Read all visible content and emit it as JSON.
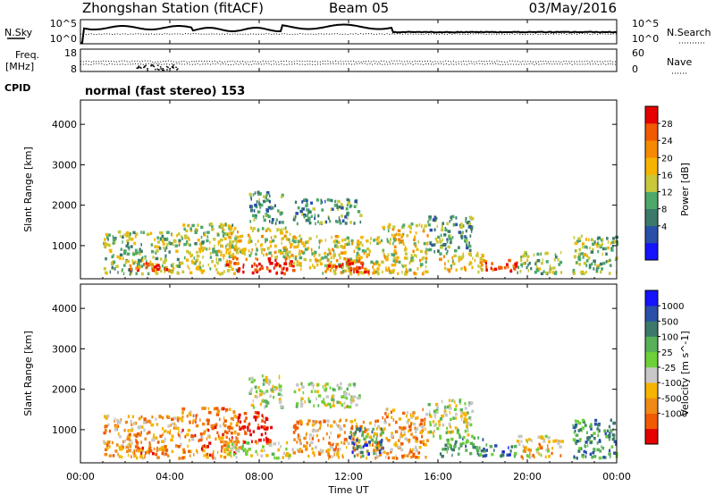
{
  "header": {
    "station": "Zhongshan Station (fitACF)",
    "beam": "Beam 05",
    "date": "03/May/2016"
  },
  "noise_panel": {
    "left_label": "N.Sky",
    "right_label": "N.Search",
    "ticks": [
      "10^5",
      "10^0"
    ]
  },
  "freq_panel": {
    "left_label_1": "Freq.",
    "left_label_2": "[MHz]",
    "right_label": "Nave",
    "left_ticks": [
      "18",
      "8"
    ],
    "right_ticks": [
      "60",
      "0"
    ]
  },
  "cpid": {
    "label": "CPID",
    "text": "normal (fast stereo) 153"
  },
  "colors": {
    "power_scale": [
      "#1414ff",
      "#2a4fa8",
      "#3b7a6a",
      "#4ea86a",
      "#c8c83a",
      "#f5b400",
      "#f58a00",
      "#f05a00",
      "#e60000"
    ],
    "velocity_scale": [
      "#1414ff",
      "#2a4fa8",
      "#3b7a6a",
      "#58b058",
      "#6ed038",
      "#c8c8c8",
      "#f5b400",
      "#f08a14",
      "#f05a00",
      "#e60000"
    ]
  },
  "chart_data": [
    {
      "type": "heatmap",
      "title": "Power",
      "xlabel": "Time UT",
      "ylabel": "Slant Range [km]",
      "x_ticks": [
        "00:00",
        "04:00",
        "08:00",
        "12:00",
        "16:00",
        "20:00",
        "00:00"
      ],
      "xlim_hours": [
        0,
        24
      ],
      "y_ticks": [
        "1000",
        "2000",
        "3000",
        "4000"
      ],
      "ylim": [
        180,
        4600
      ],
      "colorbar": {
        "label": "Power [dB]",
        "ticks": [
          "4",
          "8",
          "12",
          "16",
          "20",
          "24",
          "28"
        ],
        "range": [
          0,
          30
        ]
      },
      "echo_regions": [
        {
          "t": [
            1.0,
            4.5
          ],
          "r": [
            250,
            1300
          ],
          "level": 0.45
        },
        {
          "t": [
            2.0,
            4.0
          ],
          "r": [
            350,
            550
          ],
          "level": 0.85
        },
        {
          "t": [
            4.5,
            7.0
          ],
          "r": [
            250,
            1500
          ],
          "level": 0.5
        },
        {
          "t": [
            6.5,
            9.5
          ],
          "r": [
            250,
            650
          ],
          "level": 0.92
        },
        {
          "t": [
            6.5,
            9.5
          ],
          "r": [
            650,
            1400
          ],
          "level": 0.55
        },
        {
          "t": [
            7.5,
            9.0
          ],
          "r": [
            1500,
            2300
          ],
          "level": 0.3
        },
        {
          "t": [
            9.5,
            12.5
          ],
          "r": [
            1500,
            2100
          ],
          "level": 0.35
        },
        {
          "t": [
            9.5,
            13.5
          ],
          "r": [
            250,
            1200
          ],
          "level": 0.55
        },
        {
          "t": [
            11.0,
            13.0
          ],
          "r": [
            300,
            600
          ],
          "level": 0.9
        },
        {
          "t": [
            13.5,
            15.5
          ],
          "r": [
            250,
            1500
          ],
          "level": 0.55
        },
        {
          "t": [
            15.5,
            17.5
          ],
          "r": [
            800,
            1700
          ],
          "level": 0.35
        },
        {
          "t": [
            16.0,
            18.0
          ],
          "r": [
            300,
            800
          ],
          "level": 0.6
        },
        {
          "t": [
            18.0,
            19.5
          ],
          "r": [
            300,
            600
          ],
          "level": 0.85
        },
        {
          "t": [
            19.5,
            21.5
          ],
          "r": [
            250,
            800
          ],
          "level": 0.45
        },
        {
          "t": [
            22.0,
            24.0
          ],
          "r": [
            250,
            1200
          ],
          "level": 0.45
        }
      ]
    },
    {
      "type": "heatmap",
      "title": "Velocity",
      "xlabel": "Time UT",
      "ylabel": "Slant Range [km]",
      "x_ticks": [
        "00:00",
        "04:00",
        "08:00",
        "12:00",
        "16:00",
        "20:00",
        "00:00"
      ],
      "xlim_hours": [
        0,
        24
      ],
      "y_ticks": [
        "1000",
        "2000",
        "3000",
        "4000"
      ],
      "ylim": [
        180,
        4600
      ],
      "colorbar": {
        "label": "Velocity [m s^-1]",
        "ticks": [
          "1000",
          "500",
          "100",
          "25",
          "-25",
          "-100",
          "-500",
          "-1000"
        ]
      },
      "echo_regions": [
        {
          "t": [
            1.0,
            4.5
          ],
          "r": [
            250,
            1300
          ],
          "level": 0.3
        },
        {
          "t": [
            2.0,
            4.0
          ],
          "r": [
            350,
            550
          ],
          "level": 0.15
        },
        {
          "t": [
            4.5,
            7.0
          ],
          "r": [
            250,
            1500
          ],
          "level": 0.25
        },
        {
          "t": [
            6.5,
            9.5
          ],
          "r": [
            250,
            650
          ],
          "level": 0.45
        },
        {
          "t": [
            7.0,
            8.5
          ],
          "r": [
            650,
            1400
          ],
          "level": 0.05
        },
        {
          "t": [
            7.5,
            9.0
          ],
          "r": [
            1500,
            2300
          ],
          "level": 0.5
        },
        {
          "t": [
            9.5,
            12.5
          ],
          "r": [
            1500,
            2100
          ],
          "level": 0.5
        },
        {
          "t": [
            9.5,
            13.5
          ],
          "r": [
            250,
            1200
          ],
          "level": 0.3
        },
        {
          "t": [
            12.0,
            13.5
          ],
          "r": [
            300,
            1000
          ],
          "level": 0.75
        },
        {
          "t": [
            13.5,
            15.5
          ],
          "r": [
            250,
            1500
          ],
          "level": 0.3
        },
        {
          "t": [
            15.5,
            17.5
          ],
          "r": [
            800,
            1700
          ],
          "level": 0.5
        },
        {
          "t": [
            16.0,
            18.0
          ],
          "r": [
            300,
            800
          ],
          "level": 0.7
        },
        {
          "t": [
            18.0,
            19.5
          ],
          "r": [
            300,
            600
          ],
          "level": 0.75
        },
        {
          "t": [
            19.5,
            21.5
          ],
          "r": [
            250,
            800
          ],
          "level": 0.35
        },
        {
          "t": [
            22.0,
            24.0
          ],
          "r": [
            250,
            1200
          ],
          "level": 0.7
        }
      ]
    }
  ]
}
